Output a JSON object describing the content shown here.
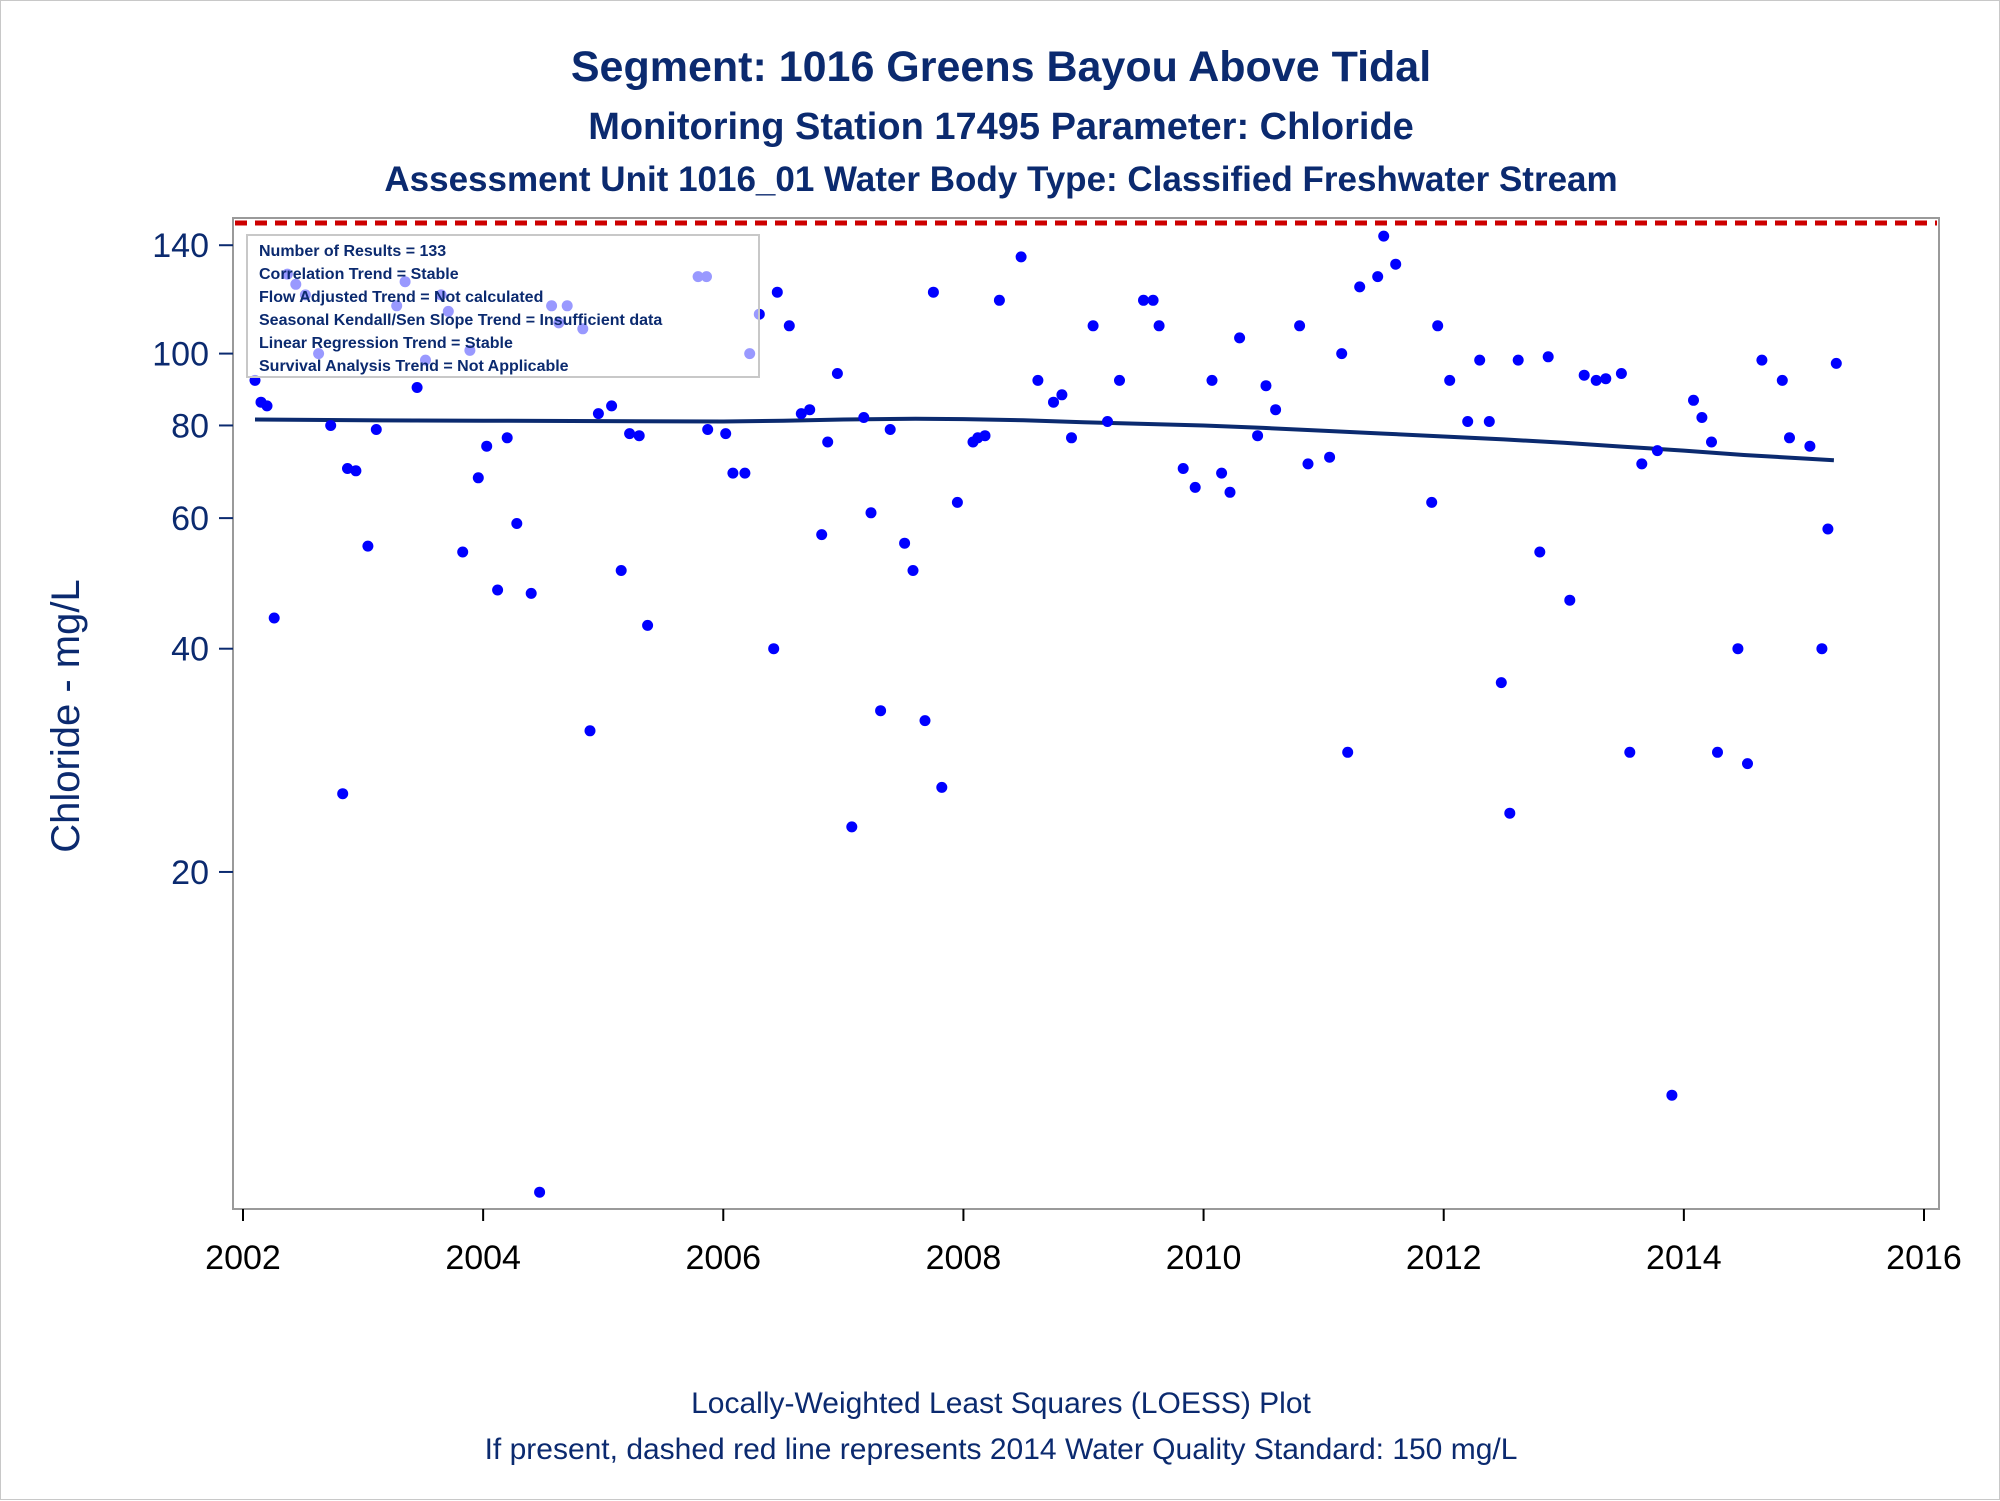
{
  "titles": {
    "line1": "Segment: 1016  Greens Bayou Above Tidal",
    "line2": "Monitoring Station 17495 Parameter: Chloride",
    "line3": "Assessment Unit 1016_01   Water Body Type: Classified Freshwater Stream"
  },
  "footnotes": {
    "line1": "Locally-Weighted Least Squares (LOESS) Plot",
    "line2": "If present, dashed red line represents 2014 Water Quality Standard: 150    mg/L"
  },
  "stats_box": [
    "Number of Results = 133",
    "Correlation Trend = Stable",
    "Flow Adjusted Trend = Not calculated",
    "Seasonal Kendall/Sen Slope Trend = Insufficient data",
    "Linear Regression Trend = Stable",
    "Survival Analysis Trend = Not Applicable"
  ],
  "colors": {
    "points": "#0000ff",
    "loess": "#0b2a6f",
    "standard": "#cc0000",
    "text": "#0b2a6f"
  },
  "chart_data": {
    "type": "scatter",
    "ylabel": "Chloride - mg/L",
    "xlabel": "",
    "y_scale": "log",
    "xlim": [
      2002,
      2016
    ],
    "ylim": [
      7.2,
      150
    ],
    "x_ticks": [
      2002,
      2004,
      2006,
      2008,
      2010,
      2012,
      2014,
      2016
    ],
    "y_ticks": [
      20,
      40,
      60,
      80,
      100,
      140
    ],
    "standard_line": {
      "value": 150,
      "style": "dashed",
      "color": "#cc0000"
    },
    "points": [
      [
        2002.1,
        92
      ],
      [
        2002.15,
        86
      ],
      [
        2002.2,
        85
      ],
      [
        2002.26,
        44
      ],
      [
        2002.37,
        128
      ],
      [
        2002.44,
        124
      ],
      [
        2002.52,
        120
      ],
      [
        2002.63,
        100
      ],
      [
        2002.73,
        80
      ],
      [
        2002.83,
        25.5
      ],
      [
        2002.87,
        70
      ],
      [
        2002.94,
        69.5
      ],
      [
        2003.04,
        55
      ],
      [
        2003.11,
        79
      ],
      [
        2003.28,
        116
      ],
      [
        2003.35,
        125
      ],
      [
        2003.45,
        90
      ],
      [
        2003.52,
        98
      ],
      [
        2003.65,
        120
      ],
      [
        2003.71,
        114
      ],
      [
        2003.83,
        54
      ],
      [
        2003.89,
        101
      ],
      [
        2003.96,
        68
      ],
      [
        2004.03,
        75
      ],
      [
        2004.12,
        48
      ],
      [
        2004.2,
        77
      ],
      [
        2004.28,
        59
      ],
      [
        2004.4,
        47.5
      ],
      [
        2004.47,
        7.4
      ],
      [
        2004.57,
        116
      ],
      [
        2004.63,
        110
      ],
      [
        2004.7,
        116
      ],
      [
        2004.83,
        108
      ],
      [
        2004.89,
        31
      ],
      [
        2004.96,
        83
      ],
      [
        2005.07,
        85
      ],
      [
        2005.15,
        51
      ],
      [
        2005.22,
        78
      ],
      [
        2005.3,
        77.5
      ],
      [
        2005.37,
        43
      ],
      [
        2005.79,
        127
      ],
      [
        2005.86,
        127
      ],
      [
        2005.87,
        79
      ],
      [
        2006.02,
        78
      ],
      [
        2006.08,
        69
      ],
      [
        2006.18,
        69
      ],
      [
        2006.22,
        100
      ],
      [
        2006.3,
        113
      ],
      [
        2006.42,
        40
      ],
      [
        2006.45,
        121
      ],
      [
        2006.55,
        109
      ],
      [
        2006.65,
        83
      ],
      [
        2006.72,
        84
      ],
      [
        2006.82,
        57
      ],
      [
        2006.87,
        76
      ],
      [
        2006.95,
        94
      ],
      [
        2007.07,
        23
      ],
      [
        2007.17,
        82
      ],
      [
        2007.23,
        61
      ],
      [
        2007.31,
        33
      ],
      [
        2007.39,
        79
      ],
      [
        2007.51,
        55.5
      ],
      [
        2007.58,
        51
      ],
      [
        2007.68,
        32
      ],
      [
        2007.75,
        121
      ],
      [
        2007.82,
        26
      ],
      [
        2007.95,
        63
      ],
      [
        2008.08,
        76
      ],
      [
        2008.12,
        77
      ],
      [
        2008.18,
        77.5
      ],
      [
        2008.3,
        118
      ],
      [
        2008.48,
        135
      ],
      [
        2008.62,
        92
      ],
      [
        2008.75,
        86
      ],
      [
        2008.82,
        88
      ],
      [
        2008.9,
        77
      ],
      [
        2009.08,
        109
      ],
      [
        2009.2,
        81
      ],
      [
        2009.3,
        92
      ],
      [
        2009.5,
        118
      ],
      [
        2009.58,
        118
      ],
      [
        2009.63,
        109
      ],
      [
        2009.83,
        70
      ],
      [
        2009.93,
        66
      ],
      [
        2010.07,
        92
      ],
      [
        2010.15,
        69
      ],
      [
        2010.22,
        65
      ],
      [
        2010.3,
        105
      ],
      [
        2010.45,
        77.5
      ],
      [
        2010.52,
        90.5
      ],
      [
        2010.6,
        84
      ],
      [
        2010.8,
        109
      ],
      [
        2010.87,
        71
      ],
      [
        2011.05,
        72.5
      ],
      [
        2011.15,
        100
      ],
      [
        2011.2,
        29
      ],
      [
        2011.3,
        123
      ],
      [
        2011.45,
        127
      ],
      [
        2011.5,
        144
      ],
      [
        2011.6,
        132
      ],
      [
        2011.9,
        63
      ],
      [
        2011.95,
        109
      ],
      [
        2012.05,
        92
      ],
      [
        2012.2,
        81
      ],
      [
        2012.3,
        98
      ],
      [
        2012.38,
        81
      ],
      [
        2012.48,
        36
      ],
      [
        2012.55,
        24
      ],
      [
        2012.62,
        98
      ],
      [
        2012.8,
        54
      ],
      [
        2012.87,
        99
      ],
      [
        2013.05,
        46.5
      ],
      [
        2013.17,
        93.5
      ],
      [
        2013.27,
        92
      ],
      [
        2013.35,
        92.5
      ],
      [
        2013.48,
        94
      ],
      [
        2013.55,
        29
      ],
      [
        2013.65,
        71
      ],
      [
        2013.78,
        74
      ],
      [
        2013.9,
        10
      ],
      [
        2014.08,
        86.5
      ],
      [
        2014.15,
        82
      ],
      [
        2014.23,
        76
      ],
      [
        2014.28,
        29
      ],
      [
        2014.45,
        40
      ],
      [
        2014.53,
        28
      ],
      [
        2014.65,
        98
      ],
      [
        2014.82,
        92
      ],
      [
        2014.88,
        77
      ],
      [
        2015.05,
        75
      ],
      [
        2015.15,
        40
      ],
      [
        2015.2,
        58
      ],
      [
        2015.27,
        97
      ]
    ],
    "loess": [
      [
        2002.1,
        81.5
      ],
      [
        2003.0,
        81.3
      ],
      [
        2004.0,
        81.2
      ],
      [
        2005.0,
        81.1
      ],
      [
        2006.0,
        81.0
      ],
      [
        2006.5,
        81.2
      ],
      [
        2007.0,
        81.5
      ],
      [
        2007.6,
        81.7
      ],
      [
        2008.0,
        81.6
      ],
      [
        2008.5,
        81.3
      ],
      [
        2009.0,
        80.8
      ],
      [
        2009.5,
        80.4
      ],
      [
        2010.0,
        80.0
      ],
      [
        2010.5,
        79.4
      ],
      [
        2011.0,
        78.7
      ],
      [
        2011.5,
        78.0
      ],
      [
        2012.0,
        77.3
      ],
      [
        2012.5,
        76.6
      ],
      [
        2013.0,
        75.8
      ],
      [
        2013.5,
        74.9
      ],
      [
        2014.0,
        74.0
      ],
      [
        2014.5,
        73.0
      ],
      [
        2015.0,
        72.2
      ],
      [
        2015.25,
        71.8
      ]
    ]
  }
}
